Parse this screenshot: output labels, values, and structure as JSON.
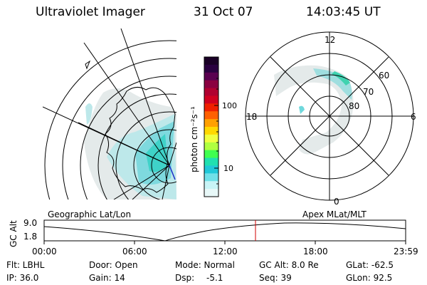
{
  "header": {
    "instrument": "Ultraviolet Imager",
    "date": "31 Oct 07",
    "time": "14:03:45 UT"
  },
  "colorbar": {
    "unit_label": "photon cm⁻²s⁻¹",
    "ticks": [
      "100",
      "10"
    ],
    "scale": "log",
    "colors": [
      "#1a0026",
      "#2a0040",
      "#5a0050",
      "#8a0040",
      "#b00030",
      "#d00020",
      "#ef2000",
      "#ff6000",
      "#ffa000",
      "#ffd800",
      "#f0ff40",
      "#b0ff40",
      "#40ff50",
      "#20e0b0",
      "#20c8d8",
      "#70e0e8",
      "#c8f4f6",
      "#e8f8f8"
    ]
  },
  "polar_map": {
    "labels": {
      "top": "12",
      "right": "6",
      "left": "18",
      "bottom": "0"
    },
    "lat_labels": [
      "60",
      "70",
      "80"
    ]
  },
  "timeline": {
    "left_title": "Geographic Lat/Lon",
    "right_title": "Apex MLat/MLT",
    "axis_label": "GC Alt",
    "y_ticks": [
      "9.0",
      "1.8"
    ],
    "x_ticks": [
      "00:00",
      "06:00",
      "12:00",
      "18:00",
      "23:59"
    ],
    "marker_color": "#d00000"
  },
  "footer": {
    "filter": "Flt: LBHL",
    "ip": "IP: 36.0",
    "door": "Door: Open",
    "gain": "Gain: 14",
    "mode": "Mode: Normal",
    "dsp": "Dsp:",
    "dsp_value": "-5.1",
    "gc_alt": "GC Alt: 8.0 Re",
    "seq": "Seq: 39",
    "glat": "GLat: -62.5",
    "glon": "GLon: 92.5"
  }
}
